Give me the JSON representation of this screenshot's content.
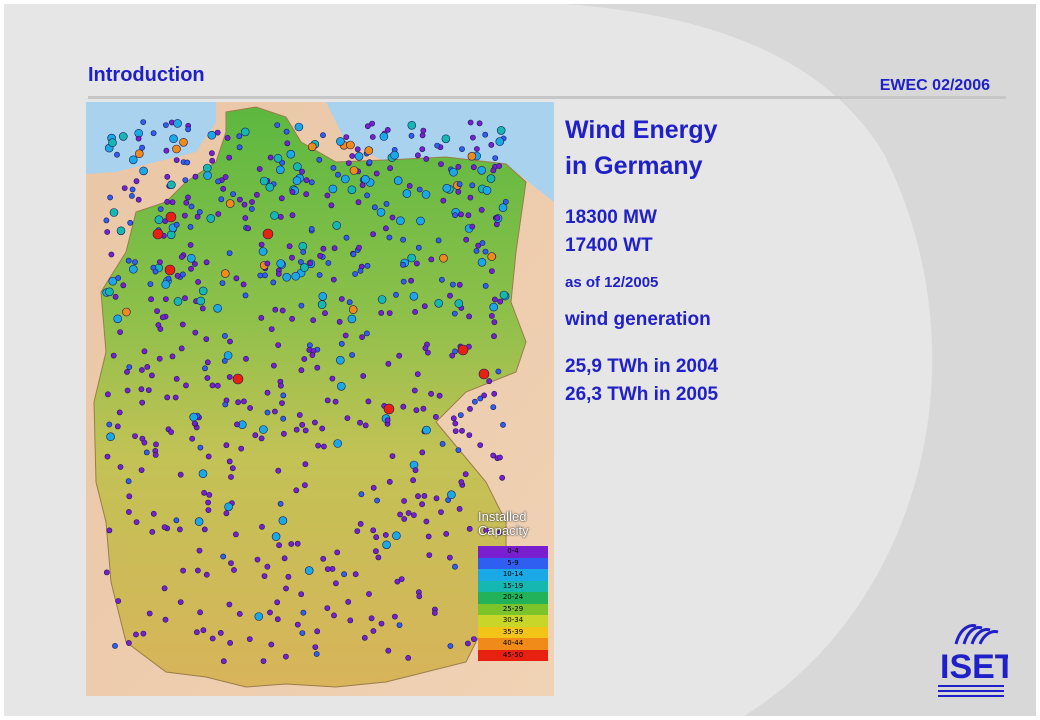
{
  "header": {
    "section_title": "Introduction",
    "event_label": "EWEC 02/2006"
  },
  "info": {
    "heading_line1": "Wind Energy",
    "heading_line2": "in Germany",
    "capacity": "18300 MW",
    "turbines": "17400 WT",
    "as_of": "as of 12/2005",
    "generation_title": "wind generation",
    "gen_2004": "25,9 TWh in 2004",
    "gen_2005": "26,3 TWh in 2005"
  },
  "map": {
    "legend_title_line1": "Installed",
    "legend_title_line2": "Capacity",
    "legend_items": [
      {
        "label": "0-4",
        "color": "#7a1fd0"
      },
      {
        "label": "5-9",
        "color": "#2f5ff0"
      },
      {
        "label": "10-14",
        "color": "#1aa8e6"
      },
      {
        "label": "15-19",
        "color": "#14b8b0"
      },
      {
        "label": "20-24",
        "color": "#22b35a"
      },
      {
        "label": "25-29",
        "color": "#7cc42a"
      },
      {
        "label": "30-34",
        "color": "#c8d62a"
      },
      {
        "label": "35-39",
        "color": "#f2c418"
      },
      {
        "label": "40-44",
        "color": "#f08a18"
      },
      {
        "label": "45-50",
        "color": "#e82010"
      }
    ]
  },
  "logo": {
    "text": "ISET",
    "color": "#2020c8"
  },
  "colors": {
    "accent": "#2020c8",
    "background": "#e6e6e6"
  }
}
